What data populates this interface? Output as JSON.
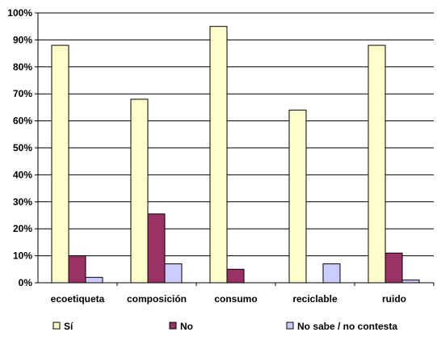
{
  "chart_data": {
    "type": "bar",
    "categories": [
      "ecoetiqueta",
      "composición",
      "consumo",
      "reciclable",
      "ruido"
    ],
    "series": [
      {
        "name": "Sí",
        "values": [
          88,
          68,
          95,
          64,
          88
        ],
        "color": "#FFFFCC"
      },
      {
        "name": "No",
        "values": [
          10,
          25.5,
          5,
          0,
          11
        ],
        "color": "#993366"
      },
      {
        "name": "No sabe / no contesta",
        "values": [
          2,
          7,
          0,
          7,
          1
        ],
        "color": "#CCCCFF"
      }
    ],
    "ylim": [
      0,
      100
    ],
    "yticks": [
      "0%",
      "10%",
      "20%",
      "30%",
      "40%",
      "50%",
      "60%",
      "70%",
      "80%",
      "90%",
      "100%"
    ],
    "grid": true,
    "legend": "bottom"
  }
}
